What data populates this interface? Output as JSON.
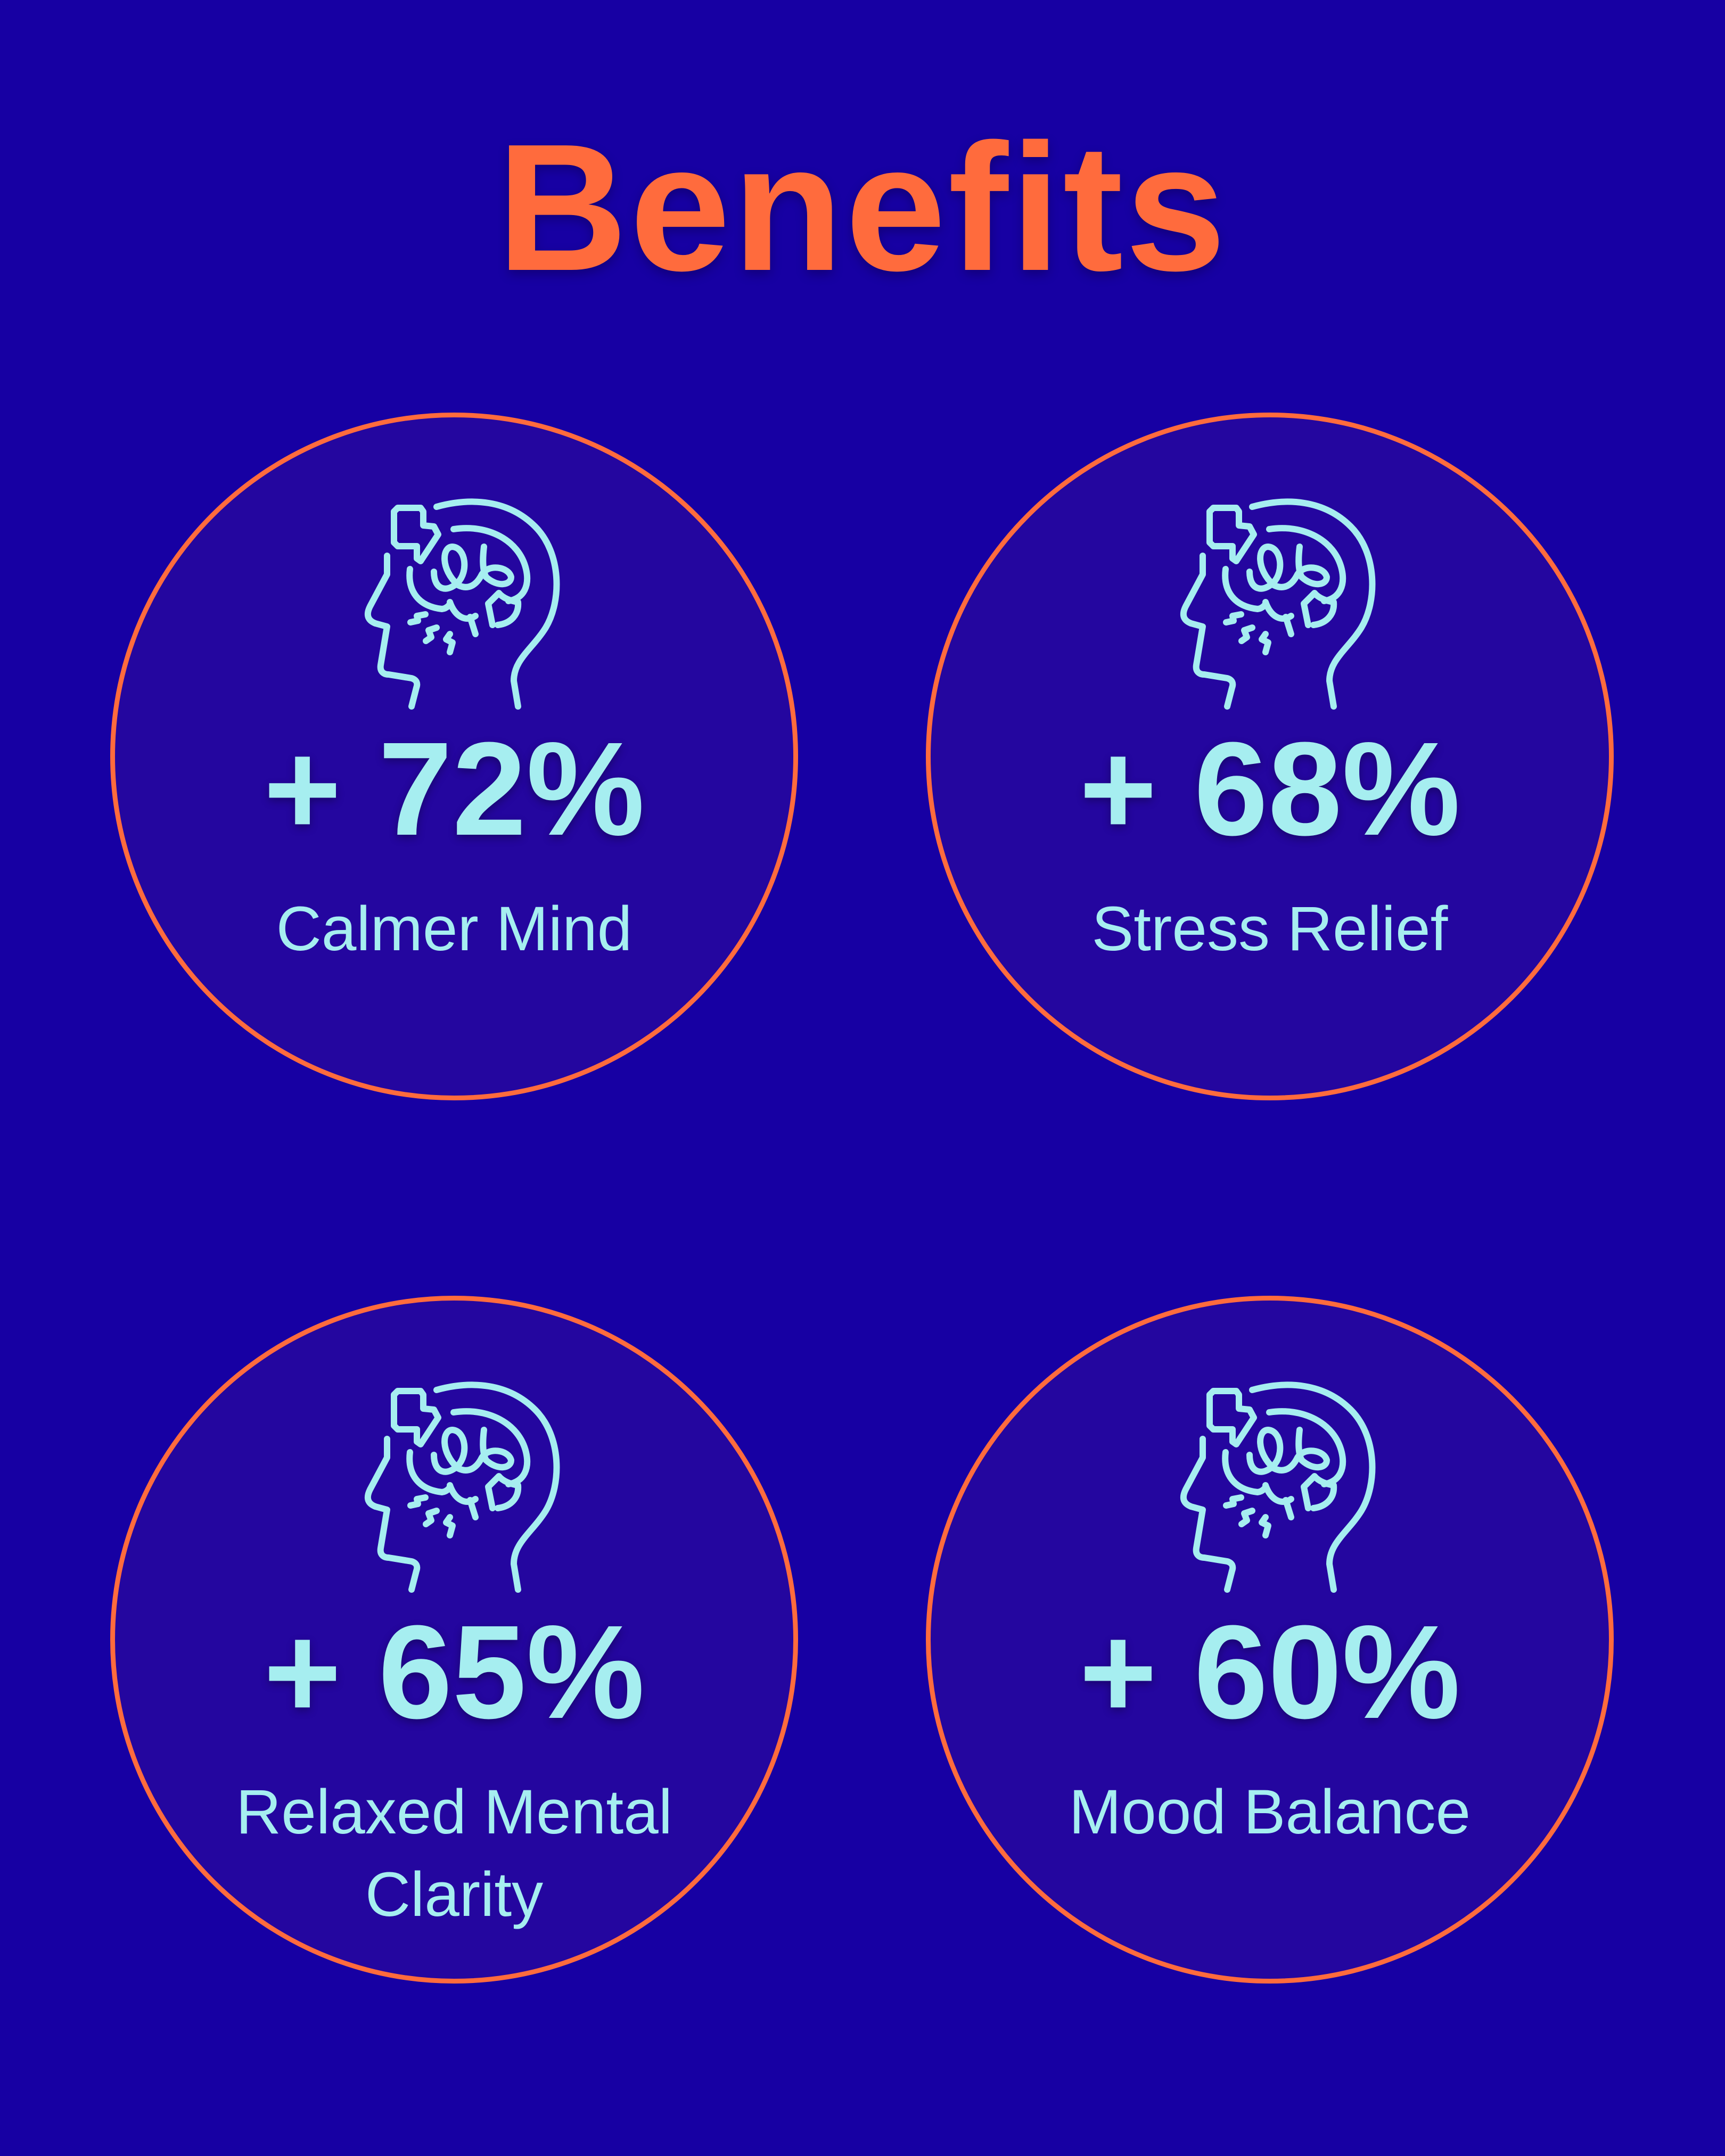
{
  "title": "Benefits",
  "colors": {
    "background": "#1700a3",
    "accent": "#ff6b3d",
    "text": "#a6eef0",
    "card_fill": "#24069f"
  },
  "benefits": [
    {
      "value": "+ 72%",
      "label": "Calmer Mind",
      "icon": "head-brain-stress-icon"
    },
    {
      "value": "+ 68%",
      "label": "Stress Relief",
      "icon": "head-brain-stress-icon"
    },
    {
      "value": "+ 65%",
      "label": "Relaxed Mental Clarity",
      "icon": "head-brain-stress-icon"
    },
    {
      "value": "+ 60%",
      "label": "Mood Balance",
      "icon": "head-brain-stress-icon"
    }
  ]
}
